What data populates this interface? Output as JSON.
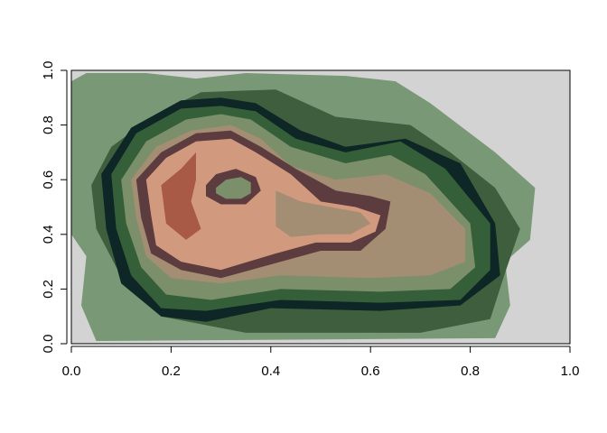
{
  "chart_data": {
    "type": "heatmap",
    "title": "",
    "xlabel": "",
    "ylabel": "",
    "xlim": [
      0,
      1
    ],
    "ylim": [
      0,
      1
    ],
    "x_ticks": [
      "0.0",
      "0.2",
      "0.4",
      "0.6",
      "0.8",
      "1.0"
    ],
    "y_ticks": [
      "0.0",
      "0.2",
      "0.4",
      "0.6",
      "0.8",
      "1.0"
    ],
    "grid": false,
    "legend": "none",
    "background_color": "#d3d3d3",
    "level_colors": [
      "#799876",
      "#3e5e3d",
      "#0e2625",
      "#355f39",
      "#7b8f6a",
      "#a38e73",
      "#d19a7e",
      "#5c3c3f",
      "#a85a46"
    ],
    "regions": [
      {
        "level": 0,
        "polygon": [
          [
            0.0,
            0.96
          ],
          [
            0.03,
            0.99
          ],
          [
            0.15,
            0.99
          ],
          [
            0.25,
            0.97
          ],
          [
            0.35,
            0.99
          ],
          [
            0.55,
            0.98
          ],
          [
            0.65,
            0.96
          ],
          [
            0.72,
            0.88
          ],
          [
            0.85,
            0.7
          ],
          [
            0.93,
            0.57
          ],
          [
            0.92,
            0.38
          ],
          [
            0.87,
            0.3
          ],
          [
            0.88,
            0.14
          ],
          [
            0.85,
            0.02
          ],
          [
            0.05,
            0.01
          ],
          [
            0.02,
            0.14
          ],
          [
            0.03,
            0.32
          ],
          [
            0.0,
            0.4
          ]
        ]
      },
      {
        "level": 1,
        "polygon": [
          [
            0.04,
            0.58
          ],
          [
            0.08,
            0.72
          ],
          [
            0.17,
            0.84
          ],
          [
            0.26,
            0.92
          ],
          [
            0.41,
            0.93
          ],
          [
            0.53,
            0.83
          ],
          [
            0.68,
            0.8
          ],
          [
            0.76,
            0.7
          ],
          [
            0.85,
            0.57
          ],
          [
            0.9,
            0.42
          ],
          [
            0.87,
            0.26
          ],
          [
            0.84,
            0.09
          ],
          [
            0.7,
            0.04
          ],
          [
            0.35,
            0.04
          ],
          [
            0.18,
            0.1
          ],
          [
            0.09,
            0.28
          ],
          [
            0.05,
            0.42
          ]
        ]
      },
      {
        "level": 2,
        "polygon": [
          [
            0.06,
            0.62
          ],
          [
            0.12,
            0.79
          ],
          [
            0.22,
            0.89
          ],
          [
            0.3,
            0.9
          ],
          [
            0.37,
            0.88
          ],
          [
            0.46,
            0.78
          ],
          [
            0.55,
            0.72
          ],
          [
            0.67,
            0.75
          ],
          [
            0.78,
            0.66
          ],
          [
            0.85,
            0.44
          ],
          [
            0.86,
            0.25
          ],
          [
            0.78,
            0.14
          ],
          [
            0.62,
            0.12
          ],
          [
            0.4,
            0.13
          ],
          [
            0.27,
            0.08
          ],
          [
            0.18,
            0.1
          ],
          [
            0.1,
            0.22
          ],
          [
            0.07,
            0.42
          ]
        ]
      },
      {
        "level": 3,
        "polygon": [
          [
            0.08,
            0.62
          ],
          [
            0.13,
            0.77
          ],
          [
            0.22,
            0.86
          ],
          [
            0.3,
            0.87
          ],
          [
            0.37,
            0.85
          ],
          [
            0.45,
            0.75
          ],
          [
            0.55,
            0.7
          ],
          [
            0.66,
            0.74
          ],
          [
            0.75,
            0.64
          ],
          [
            0.84,
            0.44
          ],
          [
            0.84,
            0.27
          ],
          [
            0.78,
            0.16
          ],
          [
            0.62,
            0.15
          ],
          [
            0.42,
            0.16
          ],
          [
            0.27,
            0.12
          ],
          [
            0.18,
            0.13
          ],
          [
            0.12,
            0.25
          ],
          [
            0.09,
            0.42
          ]
        ]
      },
      {
        "level": 4,
        "polygon": [
          [
            0.1,
            0.6
          ],
          [
            0.15,
            0.74
          ],
          [
            0.23,
            0.82
          ],
          [
            0.3,
            0.84
          ],
          [
            0.36,
            0.82
          ],
          [
            0.44,
            0.72
          ],
          [
            0.55,
            0.66
          ],
          [
            0.64,
            0.69
          ],
          [
            0.71,
            0.62
          ],
          [
            0.8,
            0.44
          ],
          [
            0.81,
            0.28
          ],
          [
            0.76,
            0.2
          ],
          [
            0.62,
            0.19
          ],
          [
            0.42,
            0.2
          ],
          [
            0.28,
            0.16
          ],
          [
            0.19,
            0.18
          ],
          [
            0.14,
            0.28
          ],
          [
            0.11,
            0.44
          ]
        ]
      },
      {
        "level": 5,
        "polygon": [
          [
            0.12,
            0.6
          ],
          [
            0.17,
            0.72
          ],
          [
            0.24,
            0.78
          ],
          [
            0.32,
            0.8
          ],
          [
            0.38,
            0.75
          ],
          [
            0.44,
            0.65
          ],
          [
            0.53,
            0.6
          ],
          [
            0.63,
            0.62
          ],
          [
            0.72,
            0.55
          ],
          [
            0.79,
            0.42
          ],
          [
            0.79,
            0.3
          ],
          [
            0.72,
            0.25
          ],
          [
            0.6,
            0.24
          ],
          [
            0.42,
            0.25
          ],
          [
            0.3,
            0.22
          ],
          [
            0.2,
            0.24
          ],
          [
            0.15,
            0.32
          ],
          [
            0.13,
            0.46
          ]
        ]
      },
      {
        "level": 7,
        "polygon": [
          [
            0.13,
            0.6
          ],
          [
            0.18,
            0.7
          ],
          [
            0.25,
            0.77
          ],
          [
            0.32,
            0.78
          ],
          [
            0.38,
            0.72
          ],
          [
            0.45,
            0.64
          ],
          [
            0.53,
            0.56
          ],
          [
            0.6,
            0.54
          ],
          [
            0.64,
            0.52
          ],
          [
            0.63,
            0.42
          ],
          [
            0.58,
            0.34
          ],
          [
            0.5,
            0.34
          ],
          [
            0.42,
            0.3
          ],
          [
            0.3,
            0.24
          ],
          [
            0.22,
            0.27
          ],
          [
            0.16,
            0.33
          ],
          [
            0.14,
            0.46
          ]
        ]
      },
      {
        "level": 6,
        "polygon": [
          [
            0.15,
            0.6
          ],
          [
            0.19,
            0.68
          ],
          [
            0.25,
            0.74
          ],
          [
            0.32,
            0.75
          ],
          [
            0.37,
            0.7
          ],
          [
            0.44,
            0.62
          ],
          [
            0.5,
            0.52
          ],
          [
            0.57,
            0.5
          ],
          [
            0.62,
            0.47
          ],
          [
            0.61,
            0.41
          ],
          [
            0.56,
            0.37
          ],
          [
            0.49,
            0.37
          ],
          [
            0.41,
            0.33
          ],
          [
            0.3,
            0.27
          ],
          [
            0.22,
            0.3
          ],
          [
            0.17,
            0.36
          ],
          [
            0.16,
            0.47
          ]
        ]
      },
      {
        "level": 5,
        "polygon": [
          [
            0.41,
            0.56
          ],
          [
            0.46,
            0.52
          ],
          [
            0.52,
            0.5
          ],
          [
            0.58,
            0.48
          ],
          [
            0.6,
            0.44
          ],
          [
            0.56,
            0.4
          ],
          [
            0.5,
            0.4
          ],
          [
            0.44,
            0.39
          ],
          [
            0.41,
            0.43
          ]
        ]
      },
      {
        "level": 8,
        "polygon": [
          [
            0.18,
            0.58
          ],
          [
            0.22,
            0.64
          ],
          [
            0.25,
            0.7
          ],
          [
            0.25,
            0.6
          ],
          [
            0.24,
            0.52
          ],
          [
            0.26,
            0.42
          ],
          [
            0.23,
            0.38
          ],
          [
            0.19,
            0.44
          ]
        ]
      },
      {
        "level": 7,
        "polygon": [
          [
            0.27,
            0.58
          ],
          [
            0.29,
            0.62
          ],
          [
            0.33,
            0.64
          ],
          [
            0.37,
            0.61
          ],
          [
            0.38,
            0.56
          ],
          [
            0.35,
            0.51
          ],
          [
            0.3,
            0.51
          ],
          [
            0.27,
            0.54
          ]
        ]
      },
      {
        "level": 4,
        "polygon": [
          [
            0.29,
            0.57
          ],
          [
            0.31,
            0.6
          ],
          [
            0.34,
            0.61
          ],
          [
            0.36,
            0.59
          ],
          [
            0.36,
            0.55
          ],
          [
            0.34,
            0.53
          ],
          [
            0.31,
            0.53
          ],
          [
            0.29,
            0.55
          ]
        ]
      }
    ]
  }
}
